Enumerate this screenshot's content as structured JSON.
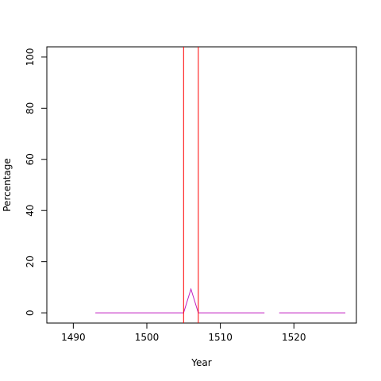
{
  "chart_data": {
    "type": "line",
    "xlabel": "Year",
    "ylabel": "Percentage",
    "x": [
      1493,
      1494,
      1495,
      1496,
      1497,
      1498,
      1499,
      1500,
      1501,
      1502,
      1503,
      1504,
      1505,
      1506,
      1507,
      1508,
      1509,
      1510,
      1511,
      1512,
      1513,
      1514,
      1515,
      1516,
      1517,
      1518,
      1519,
      1520,
      1521,
      1522,
      1523,
      1524,
      1525,
      1526,
      1527
    ],
    "series": [
      {
        "color": "#c020c0",
        "values": [
          0,
          0,
          0,
          0,
          0,
          0,
          0,
          0,
          0,
          0,
          0,
          0,
          0,
          9.3,
          0,
          0,
          0,
          0,
          0,
          0,
          0,
          0,
          0,
          0,
          null,
          0,
          0,
          0,
          0,
          0,
          0,
          0,
          0,
          0,
          0
        ]
      }
    ],
    "vlines": [
      1505,
      1507
    ],
    "vline_color": "#ff0000",
    "xlim": [
      1486.4,
      1528.5
    ],
    "xticks": [
      1490,
      1500,
      1510,
      1520
    ],
    "ylim": [
      -4,
      104
    ],
    "yticks": [
      0,
      20,
      40,
      60,
      80,
      100
    ]
  }
}
